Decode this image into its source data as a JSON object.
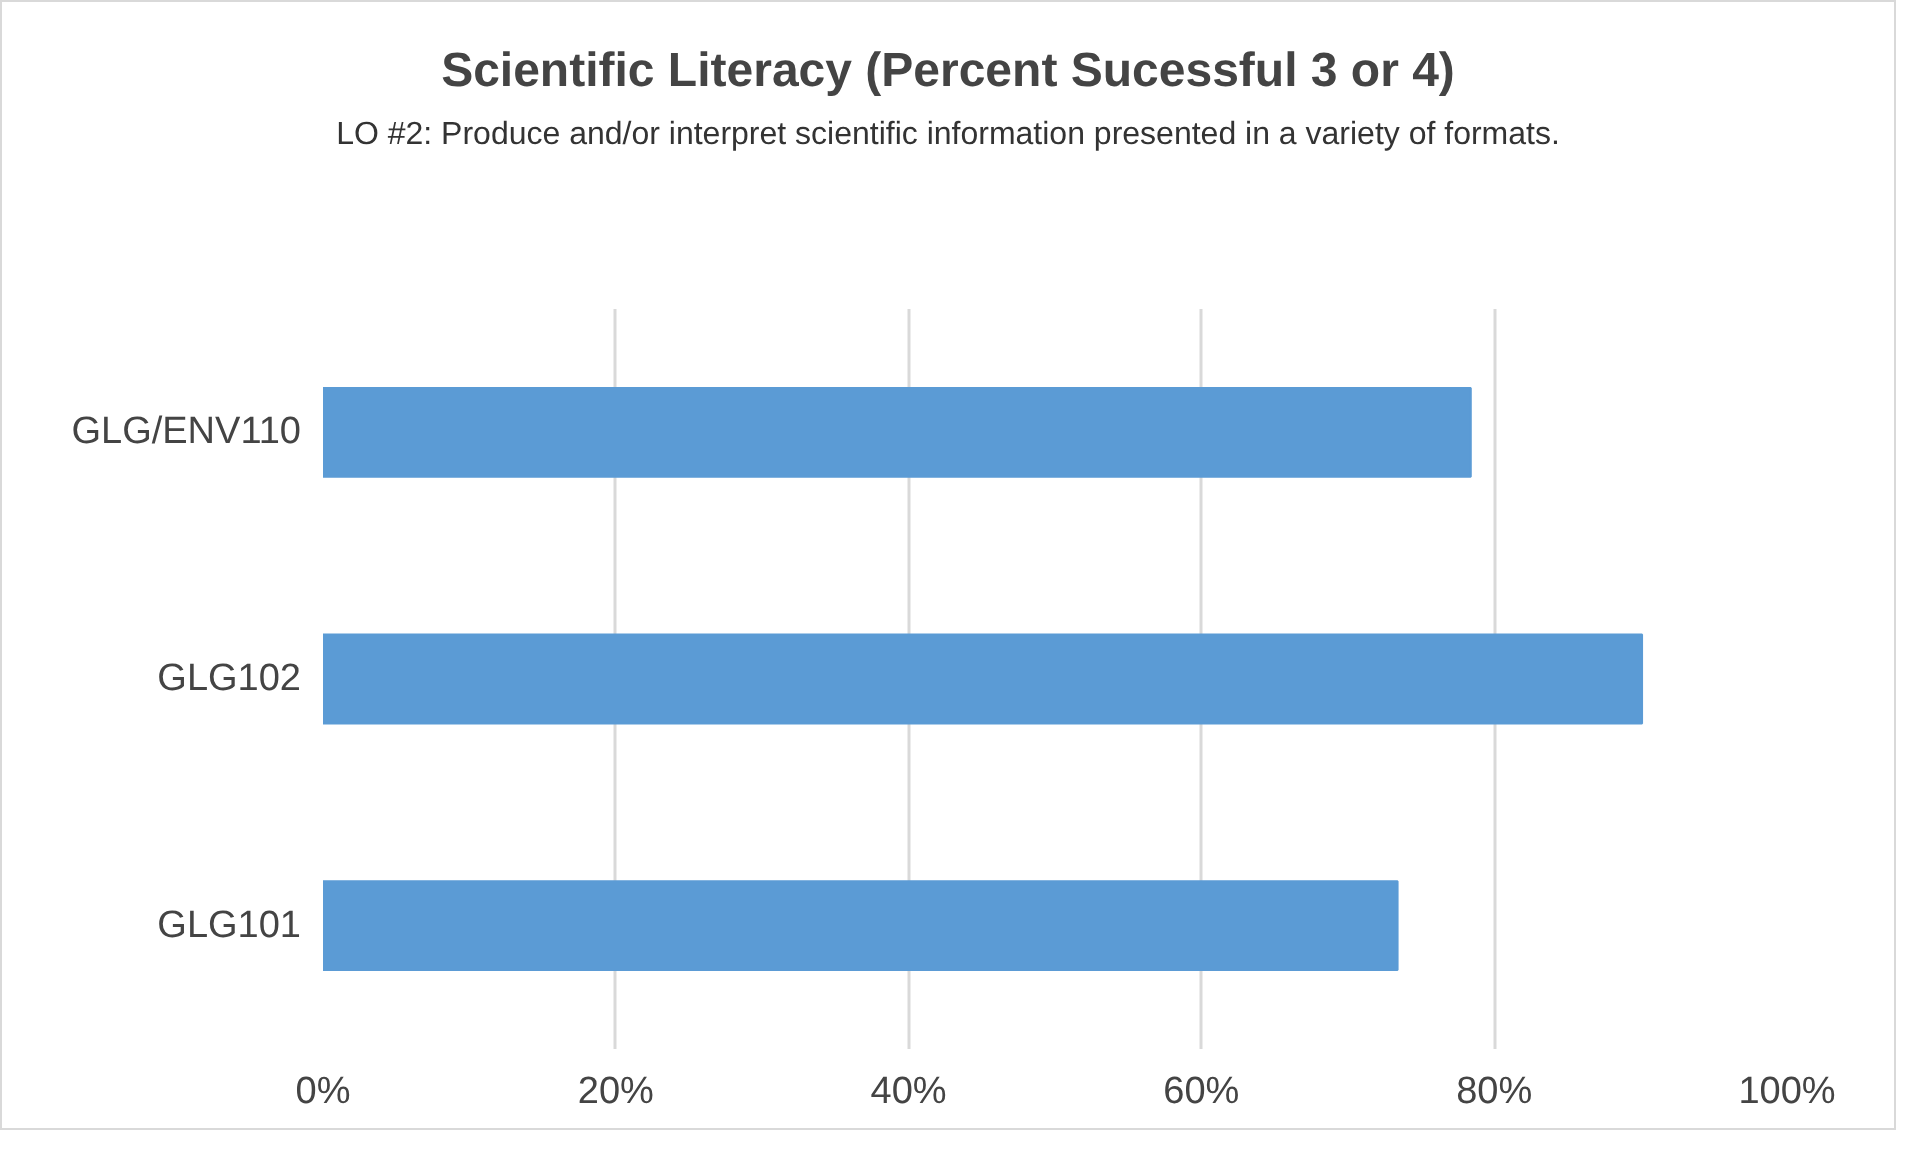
{
  "chart_data": {
    "type": "bar",
    "orientation": "horizontal",
    "title": "Scientific Literacy (Percent Sucessful 3 or 4)",
    "subtitle": "LO #2:  Produce and/or interpret scientific information presented in a variety of formats.",
    "categories": [
      "GLG/ENV110",
      "GLG102",
      "GLG101"
    ],
    "values": [
      78.4,
      90.1,
      73.4
    ],
    "color": "#5b9bd5",
    "xlim": [
      0,
      100
    ],
    "xticks": [
      {
        "value": 0,
        "label": "0%"
      },
      {
        "value": 20,
        "label": "20%"
      },
      {
        "value": 40,
        "label": "40%"
      },
      {
        "value": 60,
        "label": "60%"
      },
      {
        "value": 80,
        "label": "80%"
      },
      {
        "value": 100,
        "label": "100%"
      }
    ],
    "grid": "x"
  }
}
